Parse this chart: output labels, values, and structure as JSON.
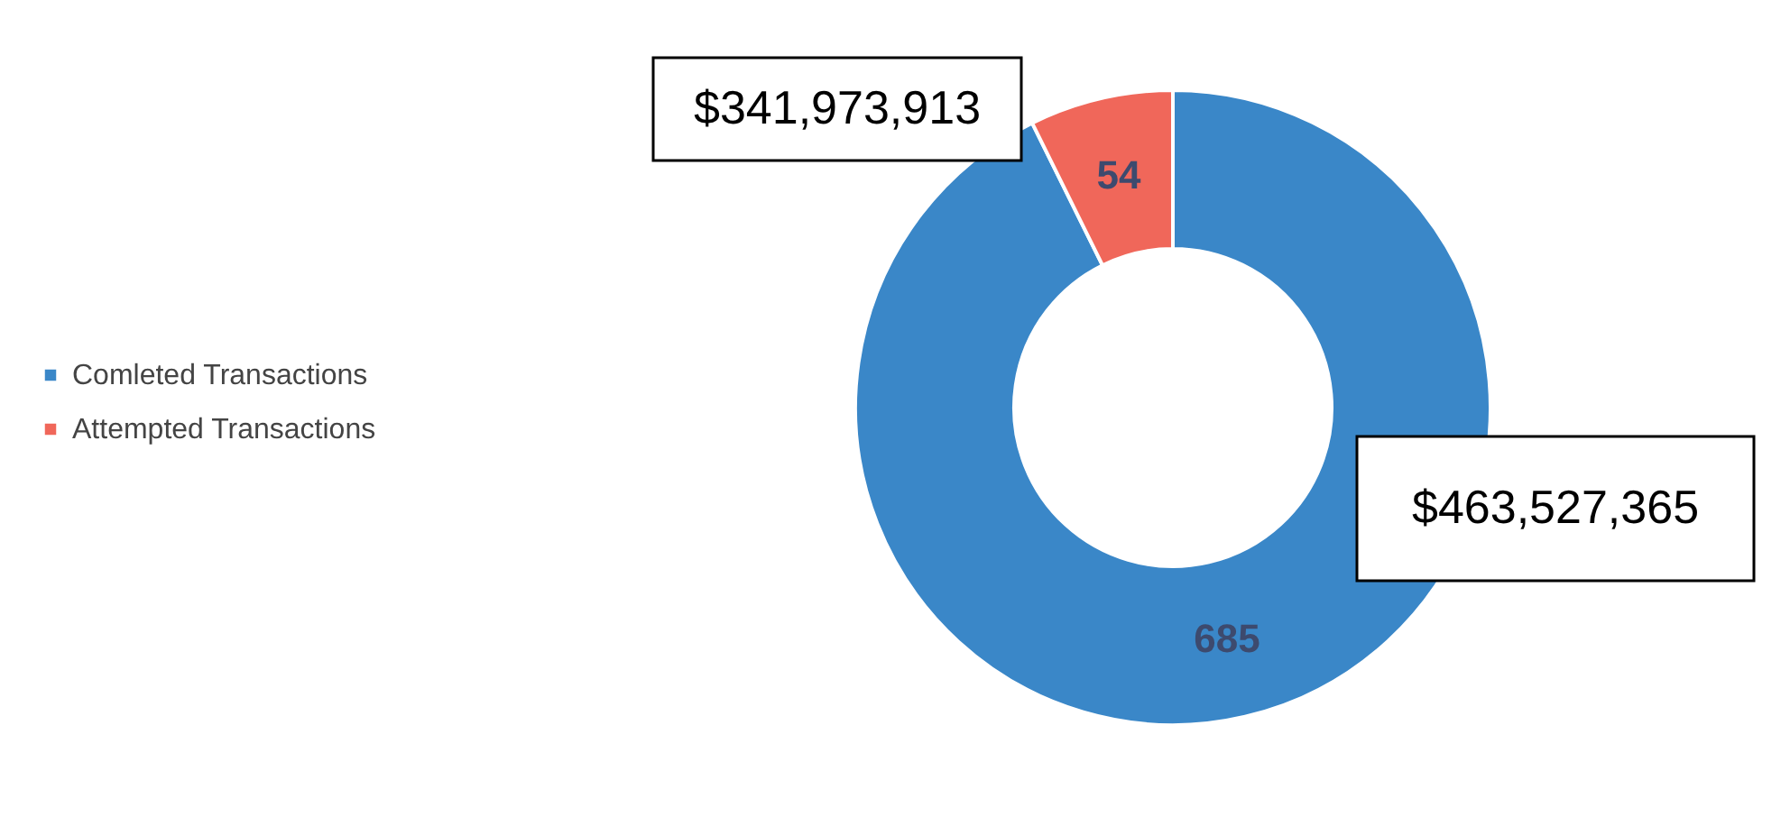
{
  "chart_data": {
    "type": "donut",
    "categories": [
      "Comleted Transactions",
      "Attempted Transactions"
    ],
    "values": [
      685,
      54
    ],
    "colors": [
      "#3a87c8",
      "#f0675a"
    ],
    "data_labels": true,
    "legend": "left",
    "annotations": [
      "$341,973,913",
      "$463,527,365"
    ]
  }
}
